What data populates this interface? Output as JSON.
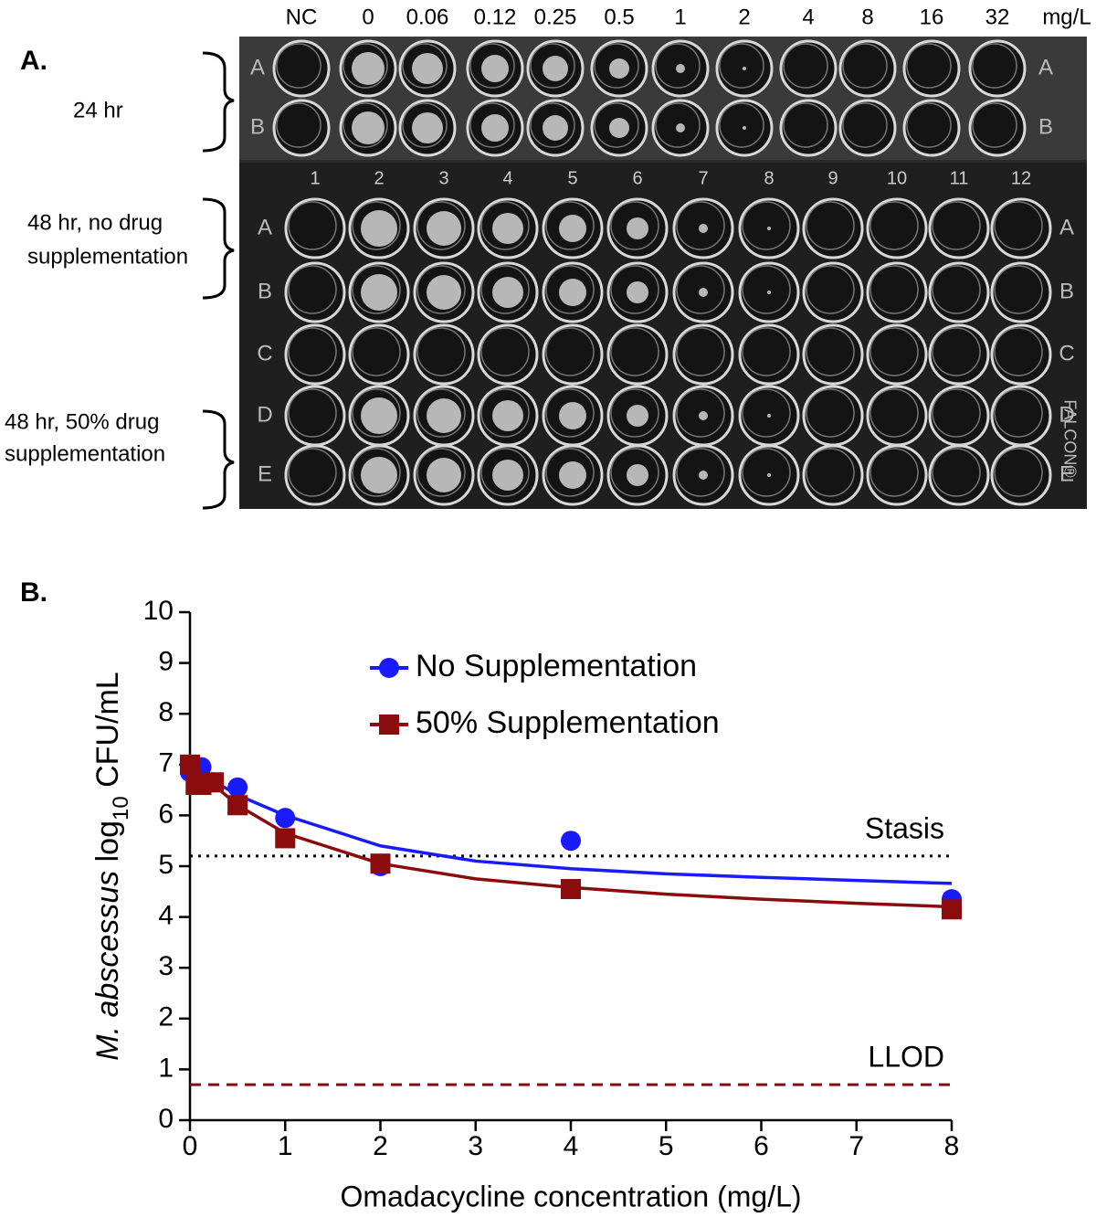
{
  "panel_a": {
    "label": "A.",
    "column_headers": [
      "NC",
      "0",
      "0.06",
      "0.12",
      "0.25",
      "0.5",
      "1",
      "2",
      "4",
      "8",
      "16",
      "32",
      "mg/L"
    ],
    "row_groups": [
      {
        "lines": [
          "24 hr"
        ]
      },
      {
        "lines": [
          "48 hr, no drug",
          "supplementation"
        ]
      },
      {
        "lines": [
          "48 hr, 50% drug",
          "supplementation"
        ]
      }
    ],
    "top_plate_rows": [
      "A",
      "B"
    ],
    "bottom_plate_rows": [
      "A",
      "B",
      "C",
      "D",
      "E"
    ],
    "bottom_plate_columns": [
      "1",
      "2",
      "3",
      "4",
      "5",
      "6",
      "7",
      "8",
      "9",
      "10",
      "11",
      "12"
    ],
    "brand": "FALCON®"
  },
  "chart_data": {
    "type": "scatter",
    "panel_label": "B.",
    "x_label": "Omadacycline concentration (mg/L)",
    "y_label_parts": [
      "M. abscessus",
      " log",
      "10",
      " CFU/mL"
    ],
    "x": [
      0,
      0.06,
      0.12,
      0.25,
      0.5,
      1,
      2,
      4,
      8
    ],
    "series": [
      {
        "name": "No Supplementation",
        "color": "#1a1aff",
        "marker": "circle",
        "values": [
          6.85,
          6.9,
          6.95,
          6.65,
          6.55,
          5.95,
          5.0,
          5.5,
          4.35
        ],
        "fit_values": [
          6.95,
          6.4,
          6.0,
          5.4,
          5.1,
          4.95,
          4.85,
          4.78,
          4.72,
          4.66
        ]
      },
      {
        "name": "50% Supplementation",
        "color": "#8b0c0c",
        "marker": "square",
        "values": [
          7.0,
          6.6,
          6.6,
          6.65,
          6.2,
          5.55,
          5.05,
          4.55,
          4.15
        ],
        "fit_values": [
          7.0,
          6.2,
          5.65,
          5.05,
          4.75,
          4.58,
          4.45,
          4.35,
          4.27,
          4.2
        ]
      }
    ],
    "fit_x": [
      0,
      0.5,
      1,
      2,
      3,
      4,
      5,
      6,
      7,
      8
    ],
    "reference_lines": [
      {
        "label": "Stasis",
        "value": 5.2,
        "color": "#000000",
        "style": "dotted"
      },
      {
        "label": "LLOD",
        "value": 0.7,
        "color": "#8b0c0c",
        "style": "dashed"
      }
    ],
    "xlim": [
      0,
      8
    ],
    "xticks": [
      0,
      1,
      2,
      3,
      4,
      5,
      6,
      7,
      8
    ],
    "ylim": [
      0,
      10
    ],
    "yticks": [
      0,
      1,
      2,
      3,
      4,
      5,
      6,
      7,
      8,
      9,
      10
    ],
    "legend": "upper center"
  }
}
